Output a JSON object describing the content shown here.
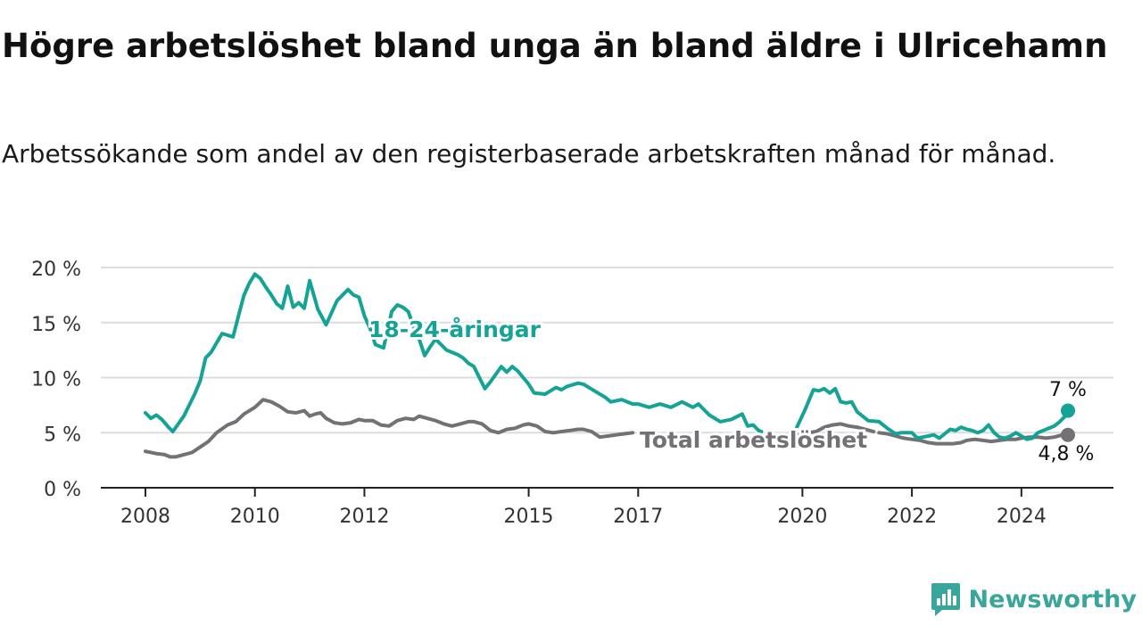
{
  "chart_data": {
    "type": "line",
    "title": "Högre arbetslöshet bland unga än bland äldre i Ulricehamn",
    "subtitle": "Arbetssökande som andel av den registerbaserade arbetskraften månad för månad.",
    "xlabel": "",
    "ylabel": "",
    "y_ticks": [
      "0 %",
      "5 %",
      "10 %",
      "15 %",
      "20 %"
    ],
    "y_tick_values": [
      0,
      5,
      10,
      15,
      20
    ],
    "ylim": [
      0,
      20
    ],
    "x_tick_labels": [
      "2008",
      "2010",
      "2012",
      "2015",
      "2017",
      "2020",
      "2022",
      "2024"
    ],
    "x_tick_values": [
      2008.0,
      2010.0,
      2012.0,
      2015.0,
      2017.0,
      2020.0,
      2022.0,
      2024.0
    ],
    "grid": true,
    "series": [
      {
        "name": "18-24-åringar",
        "color": "#14a394",
        "end_label": "7 %",
        "x": [
          2008.0,
          2008.1,
          2008.2,
          2008.3,
          2008.42,
          2008.5,
          2008.7,
          2008.9,
          2009.0,
          2009.1,
          2009.2,
          2009.4,
          2009.6,
          2009.7,
          2009.8,
          2009.9,
          2010.0,
          2010.1,
          2010.2,
          2010.3,
          2010.4,
          2010.5,
          2010.6,
          2010.7,
          2010.8,
          2010.9,
          2011.0,
          2011.15,
          2011.3,
          2011.5,
          2011.7,
          2011.8,
          2011.9,
          2012.0,
          2012.1,
          2012.2,
          2012.35,
          2012.5,
          2012.6,
          2012.7,
          2012.8,
          2012.9,
          2013.0,
          2013.1,
          2013.2,
          2013.3,
          2013.4,
          2013.5,
          2013.6,
          2013.7,
          2013.8,
          2013.9,
          2014.0,
          2014.1,
          2014.2,
          2014.3,
          2014.5,
          2014.6,
          2014.7,
          2014.8,
          2015.0,
          2015.1,
          2015.3,
          2015.5,
          2015.6,
          2015.7,
          2015.9,
          2016.0,
          2016.2,
          2016.4,
          2016.5,
          2016.7,
          2016.9,
          2017.0,
          2017.2,
          2017.4,
          2017.6,
          2017.8,
          2018.0,
          2018.1,
          2018.3,
          2018.5,
          2018.7,
          2018.9,
          2019.0,
          2019.1,
          2019.2,
          2019.25
        ],
        "y": [
          6.8,
          6.3,
          6.6,
          6.2,
          5.5,
          5.1,
          6.5,
          8.5,
          9.7,
          11.8,
          12.3,
          14.0,
          13.7,
          15.6,
          17.5,
          18.6,
          19.4,
          19.0,
          18.2,
          17.5,
          16.7,
          16.3,
          18.3,
          16.4,
          16.8,
          16.3,
          18.8,
          16.2,
          14.8,
          17.0,
          18.0,
          17.5,
          17.3,
          15.6,
          14.5,
          13.0,
          12.7,
          16.0,
          16.6,
          16.4,
          16.0,
          14.6,
          13.5,
          12.0,
          12.8,
          13.5,
          13.0,
          12.5,
          12.3,
          12.1,
          11.8,
          11.3,
          11.0,
          10.0,
          9.0,
          9.6,
          11.0,
          10.5,
          11.0,
          10.6,
          9.4,
          8.6,
          8.5,
          9.1,
          8.9,
          9.2,
          9.5,
          9.4,
          8.8,
          8.2,
          7.8,
          8.0,
          7.6,
          7.6,
          7.3,
          7.6,
          7.3,
          7.8,
          7.3,
          7.6,
          6.6,
          6.0,
          6.2,
          6.7,
          5.6,
          5.7,
          5.2,
          5.1
        ],
        "x2": [
          2019.9,
          2020.05,
          2020.2,
          2020.3,
          2020.4,
          2020.5,
          2020.6,
          2020.7,
          2020.8,
          2020.9,
          2021.0,
          2021.2,
          2021.4,
          2021.55,
          2021.7,
          2021.8,
          2021.9,
          2022.0,
          2022.1,
          2022.2,
          2022.3,
          2022.4,
          2022.5,
          2022.6,
          2022.7,
          2022.8,
          2022.9,
          2023.0,
          2023.1,
          2023.2,
          2023.3,
          2023.4,
          2023.5,
          2023.6,
          2023.7,
          2023.8,
          2023.9,
          2024.0,
          2024.1,
          2024.2,
          2024.3,
          2024.45,
          2024.6,
          2024.7,
          2024.8,
          2024.85
        ],
        "y2": [
          5.5,
          7.1,
          8.9,
          8.8,
          9.0,
          8.6,
          9.0,
          7.8,
          7.7,
          7.8,
          6.9,
          6.1,
          6.0,
          5.4,
          4.9,
          5.0,
          5.0,
          5.0,
          4.5,
          4.6,
          4.7,
          4.8,
          4.5,
          4.9,
          5.3,
          5.2,
          5.5,
          5.3,
          5.2,
          5.0,
          5.2,
          5.7,
          5.0,
          4.6,
          4.5,
          4.7,
          5.0,
          4.7,
          4.4,
          4.5,
          5.0,
          5.3,
          5.6,
          6.0,
          6.5,
          7.0
        ]
      },
      {
        "name": "Total arbetslöshet",
        "color": "#737076",
        "end_label": "4,8 %",
        "x": [
          2008.0,
          2008.2,
          2008.35,
          2008.45,
          2008.55,
          2008.7,
          2008.85,
          2009.0,
          2009.15,
          2009.3,
          2009.5,
          2009.65,
          2009.8,
          2010.0,
          2010.15,
          2010.3,
          2010.45,
          2010.6,
          2010.75,
          2010.9,
          2011.0,
          2011.1,
          2011.2,
          2011.3,
          2011.45,
          2011.6,
          2011.75,
          2011.9,
          2012.0,
          2012.15,
          2012.3,
          2012.45,
          2012.6,
          2012.75,
          2012.9,
          2013.0,
          2013.15,
          2013.3,
          2013.45,
          2013.6,
          2013.75,
          2013.9,
          2014.0,
          2014.15,
          2014.3,
          2014.45,
          2014.6,
          2014.75,
          2014.9,
          2015.0,
          2015.15,
          2015.3,
          2015.45,
          2015.6,
          2015.75,
          2015.9,
          2016.0,
          2016.15,
          2016.3,
          2016.45,
          2016.6,
          2016.75,
          2016.9
        ],
        "y": [
          3.3,
          3.1,
          3.0,
          2.8,
          2.8,
          3.0,
          3.2,
          3.7,
          4.2,
          5.0,
          5.7,
          6.0,
          6.7,
          7.3,
          8.0,
          7.8,
          7.4,
          6.9,
          6.8,
          7.0,
          6.5,
          6.7,
          6.8,
          6.3,
          5.9,
          5.8,
          5.9,
          6.2,
          6.1,
          6.1,
          5.7,
          5.6,
          6.1,
          6.3,
          6.2,
          6.5,
          6.3,
          6.1,
          5.8,
          5.6,
          5.8,
          6.0,
          6.0,
          5.8,
          5.2,
          5.0,
          5.3,
          5.4,
          5.7,
          5.8,
          5.6,
          5.1,
          5.0,
          5.1,
          5.2,
          5.3,
          5.3,
          5.1,
          4.6,
          4.7,
          4.8,
          4.9,
          5.0
        ],
        "x2": [
          2019.8,
          2019.95,
          2020.1,
          2020.25,
          2020.4,
          2020.55,
          2020.7,
          2020.85,
          2021.0,
          2021.15,
          2021.3
        ],
        "y2": [
          4.9,
          4.8,
          5.0,
          5.1,
          5.5,
          5.7,
          5.8,
          5.6,
          5.5,
          5.3,
          5.1
        ],
        "x3": [
          2021.4,
          2021.55,
          2021.7,
          2021.85,
          2022.0,
          2022.15,
          2022.3,
          2022.45,
          2022.6,
          2022.75,
          2022.9,
          2023.0,
          2023.15,
          2023.3,
          2023.45,
          2023.6,
          2023.75,
          2023.9,
          2024.0,
          2024.15,
          2024.3,
          2024.45,
          2024.6,
          2024.75,
          2024.85
        ],
        "y3": [
          5.0,
          4.9,
          4.7,
          4.5,
          4.4,
          4.3,
          4.1,
          4.0,
          4.0,
          4.0,
          4.1,
          4.3,
          4.4,
          4.3,
          4.2,
          4.3,
          4.4,
          4.4,
          4.5,
          4.6,
          4.6,
          4.5,
          4.6,
          4.8,
          4.8
        ]
      }
    ]
  },
  "brand": {
    "name": "Newsworthy"
  }
}
